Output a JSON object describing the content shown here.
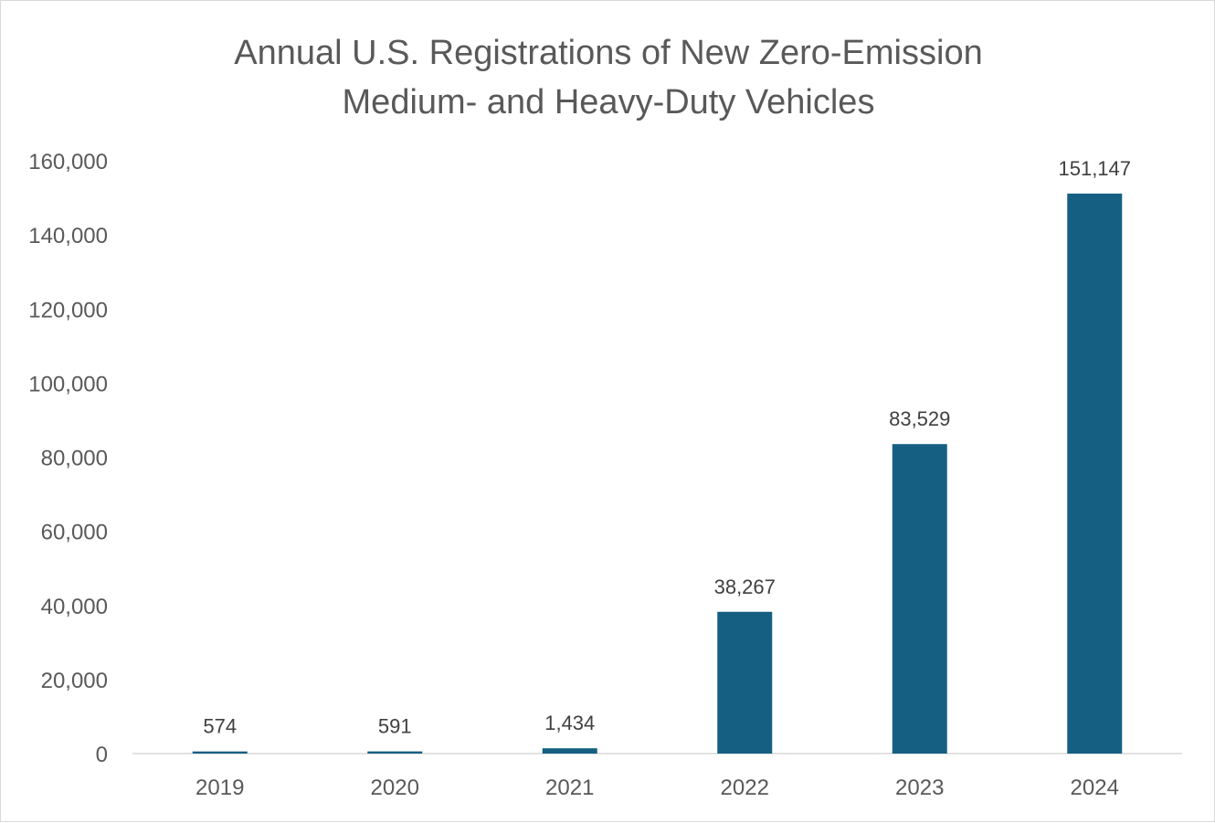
{
  "chart_data": {
    "type": "bar",
    "title_lines": [
      "Annual U.S. Registrations of New Zero-Emission",
      "Medium- and Heavy-Duty Vehicles"
    ],
    "categories": [
      "2019",
      "2020",
      "2021",
      "2022",
      "2023",
      "2024"
    ],
    "values": [
      574,
      591,
      1434,
      38267,
      83529,
      151147
    ],
    "data_labels": [
      "574",
      "591",
      "1,434",
      "38,267",
      "83,529",
      "151,147"
    ],
    "ylim": [
      0,
      160000
    ],
    "yticks": [
      0,
      20000,
      40000,
      60000,
      80000,
      100000,
      120000,
      140000,
      160000
    ],
    "ytick_labels": [
      "0",
      "20,000",
      "40,000",
      "60,000",
      "80,000",
      "100,000",
      "120,000",
      "140,000",
      "160,000"
    ],
    "grid": false,
    "legend": "none",
    "bar_color": "#156082"
  }
}
